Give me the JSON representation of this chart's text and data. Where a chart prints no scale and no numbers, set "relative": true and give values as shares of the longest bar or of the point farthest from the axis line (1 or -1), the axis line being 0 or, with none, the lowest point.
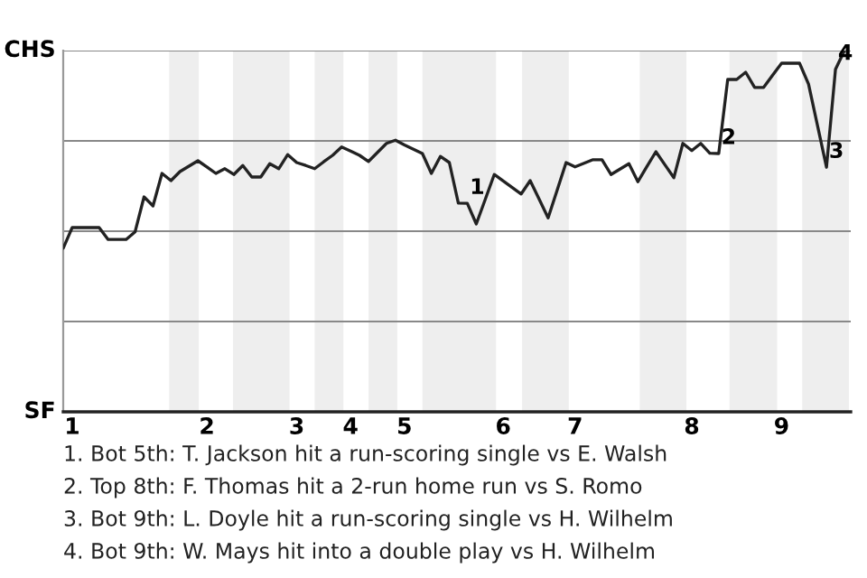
{
  "chart_data": {
    "type": "line",
    "relative": true,
    "categories": [
      null,
      "1",
      null,
      null,
      null,
      null,
      null,
      null,
      null,
      null,
      null,
      null,
      null,
      null,
      null,
      null,
      "2",
      null,
      null,
      null,
      null,
      null,
      null,
      null,
      null,
      null,
      "3",
      null,
      null,
      null,
      null,
      null,
      "4",
      null,
      null,
      null,
      null,
      null,
      "5",
      null,
      null,
      null,
      null,
      null,
      null,
      null,
      null,
      null,
      null,
      "6",
      null,
      null,
      null,
      null,
      null,
      null,
      null,
      "7",
      null,
      null,
      null,
      null,
      null,
      null,
      null,
      null,
      null,
      null,
      null,
      null,
      "8",
      null,
      null,
      null,
      null,
      null,
      null,
      null,
      null,
      null,
      "9",
      null,
      null,
      null,
      null,
      null,
      null,
      null
    ],
    "series": [
      {
        "color": "#222222",
        "values": [
          0.453,
          0.51,
          0.51,
          0.51,
          0.51,
          0.477,
          0.477,
          0.477,
          0.498,
          0.595,
          0.57,
          0.66,
          0.64,
          0.665,
          0.68,
          0.695,
          0.678,
          0.66,
          0.673,
          0.657,
          0.682,
          0.65,
          0.65,
          0.687,
          0.673,
          0.712,
          0.69,
          0.682,
          0.673,
          0.692,
          0.71,
          0.733,
          0.722,
          0.71,
          0.693,
          0.718,
          0.743,
          0.752,
          0.739,
          0.727,
          0.715,
          0.66,
          0.707,
          0.69,
          0.578,
          0.577,
          0.52,
          0.588,
          0.657,
          0.639,
          0.621,
          0.603,
          0.64,
          0.589,
          0.537,
          0.613,
          0.69,
          0.678,
          0.688,
          0.698,
          0.698,
          0.657,
          0.672,
          0.687,
          0.637,
          0.679,
          0.72,
          0.684,
          0.648,
          0.743,
          0.723,
          0.743,
          0.716,
          0.715,
          0.92,
          0.92,
          0.94,
          0.898,
          0.898,
          0.932,
          0.965,
          0.965,
          0.965,
          0.907,
          0.792,
          0.677,
          0.948,
          1
        ]
      }
    ],
    "grid": "y",
    "marker": "none",
    "line_style": "solid",
    "annotations": [
      "CHS",
      "SF",
      {
        "text": "1",
        "y": 0.577
      },
      {
        "text": "2",
        "y": 0.715
      },
      {
        "text": "3",
        "y": 0.677
      },
      {
        "text": "4",
        "y": 0.948
      },
      "1. Bot 5th: T. Jackson hit a run-scoring single vs E. Walsh",
      "2. Top 8th: F. Thomas hit a 2-run home run vs S. Romo",
      "3. Bot 9th: L. Doyle hit a run-scoring single vs H. Wilhelm",
      "4. Bot 9th: W. Mays hit into a double play vs H. Wilhelm"
    ]
  }
}
